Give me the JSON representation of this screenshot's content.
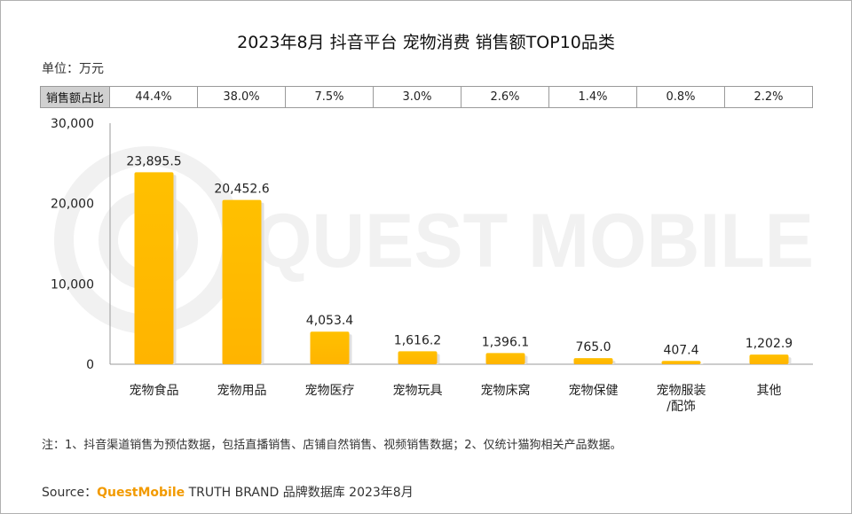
{
  "title": "2023年8月 抖音平台 宠物消费 销售额TOP10品类",
  "unit_label": "单位：万元",
  "share_header": "销售额占比",
  "watermark_text": "QUEST MOBILE",
  "note": "注：1、抖音渠道销售为预估数据，包括直播销售、店铺自然销售、视频销售数据；2、仅统计猫狗相关产品数据。",
  "source": {
    "prefix": "Source：",
    "brand": "QuestMobile",
    "rest": " TRUTH BRAND 品牌数据库 2023年8月"
  },
  "colors": {
    "bar": "#ffc000",
    "bar_shadow": "#e0e0e0",
    "brand": "#f29a00"
  },
  "chart_data": {
    "type": "bar",
    "title": "2023年8月 抖音平台 宠物消费 销售额TOP10品类",
    "ylabel": "万元",
    "ylim": [
      0,
      30000
    ],
    "yticks": [
      0,
      10000,
      20000,
      30000
    ],
    "ytick_labels": [
      "0",
      "10,000",
      "20,000",
      "30,000"
    ],
    "categories": [
      "宠物食品",
      "宠物用品",
      "宠物医疗",
      "宠物玩具",
      "宠物床窝",
      "宠物保健",
      "宠物服装/配饰",
      "其他"
    ],
    "category_lines": [
      [
        "宠物食品"
      ],
      [
        "宠物用品"
      ],
      [
        "宠物医疗"
      ],
      [
        "宠物玩具"
      ],
      [
        "宠物床窝"
      ],
      [
        "宠物保健"
      ],
      [
        "宠物服装",
        "/配饰"
      ],
      [
        "其他"
      ]
    ],
    "values": [
      23895.5,
      20452.6,
      4053.4,
      1616.2,
      1396.1,
      765.0,
      407.4,
      1202.9
    ],
    "value_labels": [
      "23,895.5",
      "20,452.6",
      "4,053.4",
      "1,616.2",
      "1,396.1",
      "765.0",
      "407.4",
      "1,202.9"
    ],
    "shares": [
      "44.4%",
      "38.0%",
      "7.5%",
      "3.0%",
      "2.6%",
      "1.4%",
      "0.8%",
      "2.2%"
    ]
  }
}
